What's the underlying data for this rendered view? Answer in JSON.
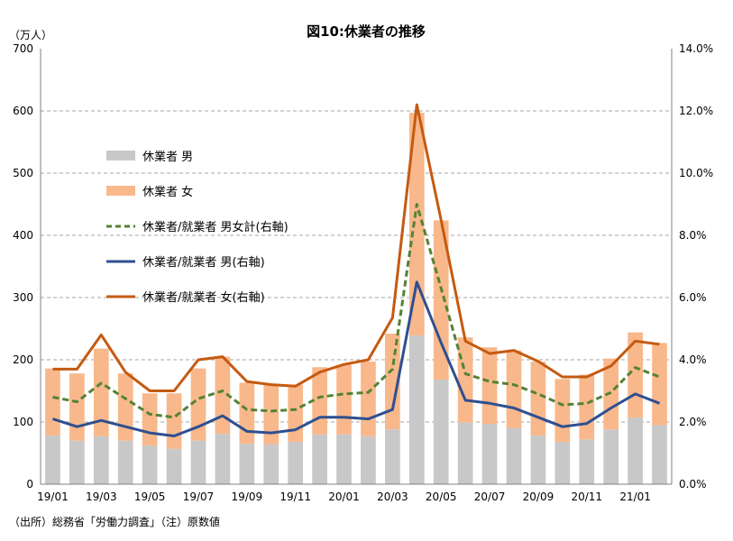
{
  "chart_data": {
    "type": "bar",
    "title": "図10:休業者の推移",
    "y_left_unit": "（万人）",
    "footnote": "（出所）総務省「労働力調査」（注）原数値",
    "categories": [
      "19/01",
      "19/02",
      "19/03",
      "19/04",
      "19/05",
      "19/06",
      "19/07",
      "19/08",
      "19/09",
      "19/10",
      "19/11",
      "19/12",
      "20/01",
      "20/02",
      "20/03",
      "20/04",
      "20/05",
      "20/06",
      "20/07",
      "20/08",
      "20/09",
      "20/10",
      "20/11",
      "20/12",
      "21/01",
      "21/02"
    ],
    "x_tick_labels": [
      "19/01",
      "",
      "19/03",
      "",
      "19/05",
      "",
      "19/07",
      "",
      "19/09",
      "",
      "19/11",
      "",
      "20/01",
      "",
      "20/03",
      "",
      "20/05",
      "",
      "20/07",
      "",
      "20/09",
      "",
      "20/11",
      "",
      "21/01",
      ""
    ],
    "ylim_left": [
      0,
      700
    ],
    "yticks_left": [
      "0",
      "100",
      "200",
      "300",
      "400",
      "500",
      "600",
      "700"
    ],
    "ylim_right": [
      0,
      14
    ],
    "yticks_right": [
      "0.0%",
      "2.0%",
      "4.0%",
      "6.0%",
      "8.0%",
      "10.0%",
      "12.0%",
      "14.0%"
    ],
    "grid": true,
    "legend_position": "upper-left",
    "bar_series": [
      {
        "name": "休業者 男",
        "color": "#c8c8c8",
        "values": [
          78,
          70,
          77,
          70,
          62,
          57,
          70,
          81,
          65,
          64,
          68,
          80,
          80,
          77,
          88,
          239,
          168,
          99,
          97,
          90,
          78,
          68,
          72,
          88,
          107,
          95
        ]
      },
      {
        "name": "休業者 女",
        "color": "#f8b88b",
        "values": [
          108,
          108,
          141,
          108,
          84,
          89,
          116,
          124,
          98,
          95,
          92,
          108,
          112,
          120,
          154,
          358,
          256,
          137,
          123,
          125,
          119,
          101,
          104,
          114,
          137,
          132
        ]
      }
    ],
    "line_series": [
      {
        "name": "休業者/就業者 男女計(右軸)",
        "color": "#548235",
        "dash": true,
        "values": [
          2.8,
          2.65,
          3.25,
          2.75,
          2.25,
          2.15,
          2.75,
          3.0,
          2.4,
          2.35,
          2.4,
          2.8,
          2.9,
          2.95,
          3.7,
          9.0,
          6.3,
          3.55,
          3.3,
          3.2,
          2.9,
          2.55,
          2.6,
          2.95,
          3.75,
          3.45
        ]
      },
      {
        "name": "休業者/就業者 男(右軸)",
        "color": "#2f4f8f",
        "dash": false,
        "values": [
          2.1,
          1.85,
          2.05,
          1.85,
          1.65,
          1.55,
          1.85,
          2.2,
          1.7,
          1.65,
          1.75,
          2.15,
          2.15,
          2.1,
          2.4,
          6.5,
          4.55,
          2.7,
          2.6,
          2.45,
          2.15,
          1.85,
          1.95,
          2.45,
          2.9,
          2.6
        ]
      },
      {
        "name": "休業者/就業者 女(右軸)",
        "color": "#c55a11",
        "dash": false,
        "values": [
          3.7,
          3.7,
          4.8,
          3.6,
          3.0,
          3.0,
          4.0,
          4.1,
          3.3,
          3.2,
          3.15,
          3.6,
          3.85,
          4.0,
          5.35,
          12.2,
          8.5,
          4.6,
          4.2,
          4.3,
          3.95,
          3.45,
          3.45,
          3.8,
          4.6,
          4.5
        ]
      }
    ]
  }
}
